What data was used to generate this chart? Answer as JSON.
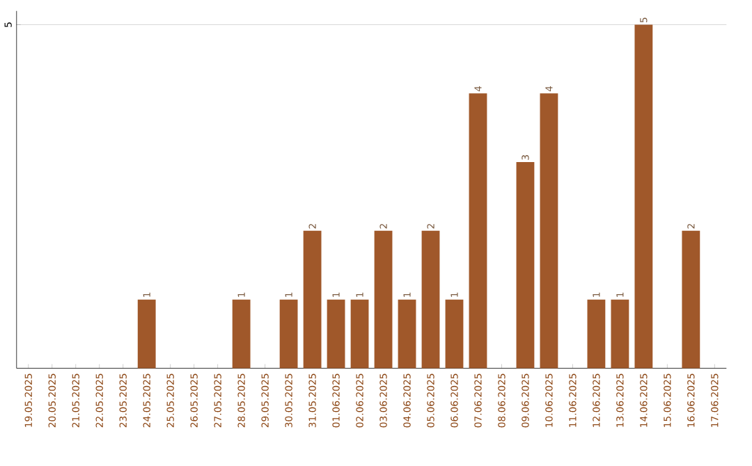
{
  "chart_data": {
    "type": "bar",
    "categories": [
      "19.05.2025",
      "20.05.2025",
      "21.05.2025",
      "22.05.2025",
      "23.05.2025",
      "24.05.2025",
      "25.05.2025",
      "26.05.2025",
      "27.05.2025",
      "28.05.2025",
      "29.05.2025",
      "30.05.2025",
      "31.05.2025",
      "01.06.2025",
      "02.06.2025",
      "03.06.2025",
      "04.06.2025",
      "05.06.2025",
      "06.06.2025",
      "07.06.2025",
      "08.06.2025",
      "09.06.2025",
      "10.06.2025",
      "11.06.2025",
      "12.06.2025",
      "13.06.2025",
      "14.06.2025",
      "15.06.2025",
      "16.06.2025",
      "17.06.2025"
    ],
    "values": [
      0,
      0,
      0,
      0,
      0,
      1,
      0,
      0,
      0,
      1,
      0,
      1,
      2,
      1,
      1,
      2,
      1,
      2,
      1,
      4,
      0,
      3,
      4,
      0,
      1,
      1,
      5,
      0,
      2,
      0
    ],
    "value_labels": [
      null,
      null,
      null,
      null,
      null,
      "1",
      null,
      null,
      null,
      "1",
      null,
      "1",
      "2",
      "1",
      "1",
      "2",
      "1",
      "2",
      "1",
      "4",
      null,
      "3",
      "4",
      null,
      "1",
      "1",
      "5",
      null,
      "2",
      null
    ],
    "color": "#a0582a",
    "ylim": [
      0,
      5.2
    ],
    "yticks": [
      5
    ],
    "grid": "y"
  }
}
